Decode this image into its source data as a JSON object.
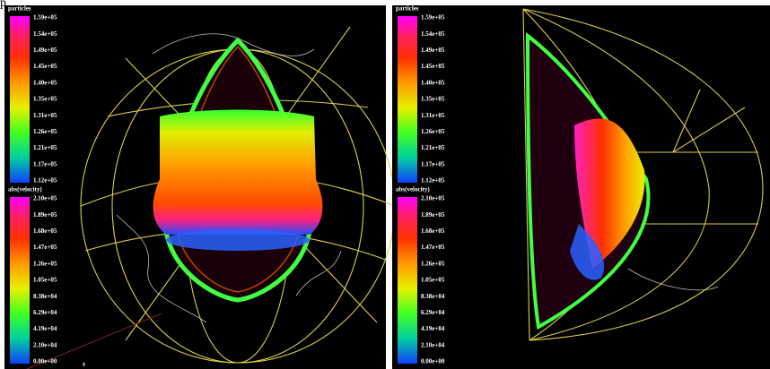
{
  "header_fragment": "p",
  "panels": [
    {
      "legends": [
        {
          "title": "particles",
          "labels": [
            "1.59e+05",
            "1.54e+05",
            "1.49e+05",
            "1.45e+05",
            "1.40e+05",
            "1.35e+05",
            "1.31e+05",
            "1.26e+05",
            "1.21e+05",
            "1.17e+05",
            "1.12e+05"
          ]
        },
        {
          "title": "abs(velocity)",
          "labels": [
            "2.10e+05",
            "1.89e+05",
            "1.68e+05",
            "1.47e+05",
            "1.26e+05",
            "1.05e+05",
            "8.38e+04",
            "6.29e+04",
            "4.19e+04",
            "2.10e+04",
            "0.00e+00"
          ]
        }
      ],
      "axis_label": "z"
    },
    {
      "legends": [
        {
          "title": "particles",
          "labels": [
            "1.59e+05",
            "1.54e+05",
            "1.49e+05",
            "1.45e+05",
            "1.40e+05",
            "1.35e+05",
            "1.31e+05",
            "1.26e+05",
            "1.21e+05",
            "1.17e+05",
            "1.12e+05"
          ]
        },
        {
          "title": "abs(velocity)",
          "labels": [
            "2.10e+05",
            "1.89e+05",
            "1.68e+05",
            "1.47e+05",
            "1.26e+05",
            "1.05e+05",
            "8.38e+04",
            "6.29e+04",
            "4.19e+04",
            "2.10e+04",
            "0.00e+00"
          ]
        }
      ]
    }
  ]
}
